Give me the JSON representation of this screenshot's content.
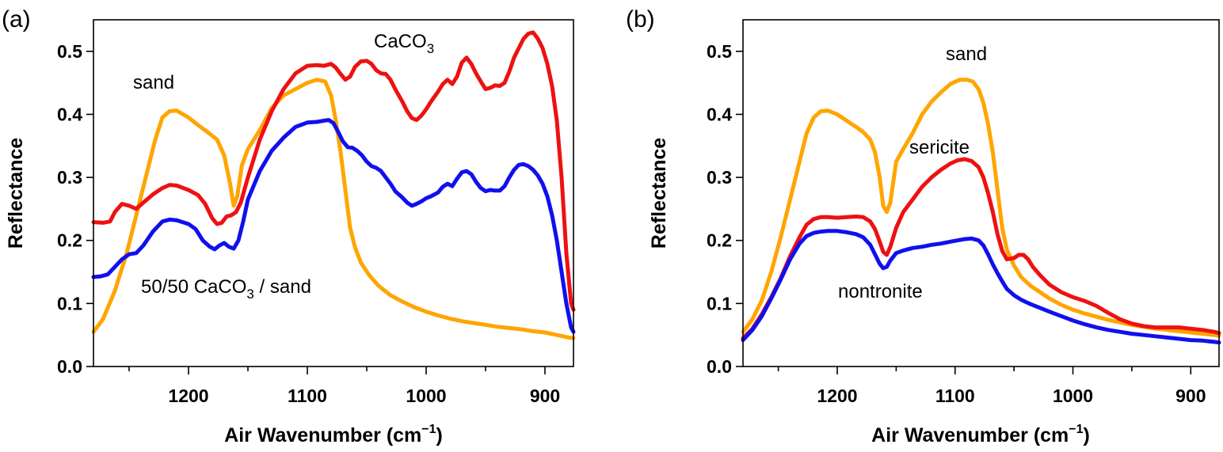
{
  "colors": {
    "sand": "#FFA500",
    "caco3": "#EE1111",
    "mix": "#1010EE",
    "sericite": "#EE1111",
    "nontronite": "#1010EE"
  },
  "chart_data": [
    {
      "id": "a",
      "type": "line",
      "panel_label": "(a)",
      "xlabel": "Air Wavenumber (cm",
      "xlabel_sup": "−1",
      "xlabel_close": ")",
      "ylabel": "Reflectance",
      "xlim": [
        1280,
        876
      ],
      "ylim": [
        0,
        0.55
      ],
      "xticks": [
        1200,
        1100,
        1000,
        900
      ],
      "yticks": [
        0.0,
        0.1,
        0.2,
        0.3,
        0.4,
        0.5
      ],
      "ytick_labels": [
        "0.0",
        "0.1",
        "0.2",
        "0.3",
        "0.4",
        "0.5"
      ],
      "annotations": {
        "sand": "sand",
        "caco3_main": "CaCO",
        "caco3_sub": "3",
        "mix_pre": "50/50 CaCO",
        "mix_sub": "3",
        "mix_post": " / sand"
      },
      "series": [
        {
          "name": "sand",
          "color": "#FFA500",
          "x": [
            1280,
            1272,
            1262,
            1252,
            1244,
            1236,
            1228,
            1222,
            1216,
            1210,
            1200,
            1192,
            1184,
            1176,
            1170,
            1165,
            1162,
            1159,
            1155,
            1150,
            1140,
            1130,
            1120,
            1110,
            1100,
            1092,
            1085,
            1080,
            1076,
            1072,
            1068,
            1064,
            1060,
            1055,
            1048,
            1040,
            1030,
            1020,
            1010,
            1000,
            990,
            980,
            970,
            960,
            950,
            940,
            930,
            920,
            910,
            900,
            890,
            880,
            876
          ],
          "y": [
            0.055,
            0.075,
            0.12,
            0.18,
            0.24,
            0.3,
            0.36,
            0.395,
            0.405,
            0.406,
            0.395,
            0.383,
            0.372,
            0.36,
            0.335,
            0.29,
            0.255,
            0.27,
            0.32,
            0.345,
            0.375,
            0.41,
            0.43,
            0.44,
            0.45,
            0.455,
            0.452,
            0.43,
            0.39,
            0.34,
            0.28,
            0.22,
            0.19,
            0.165,
            0.145,
            0.128,
            0.113,
            0.103,
            0.094,
            0.087,
            0.081,
            0.076,
            0.072,
            0.069,
            0.066,
            0.063,
            0.061,
            0.059,
            0.056,
            0.054,
            0.05,
            0.046,
            0.045
          ]
        },
        {
          "name": "CaCO3",
          "color": "#EE1111",
          "x": [
            1280,
            1272,
            1266,
            1262,
            1256,
            1250,
            1244,
            1238,
            1230,
            1222,
            1216,
            1210,
            1200,
            1192,
            1186,
            1180,
            1176,
            1172,
            1168,
            1164,
            1160,
            1156,
            1150,
            1140,
            1130,
            1120,
            1110,
            1100,
            1092,
            1086,
            1080,
            1076,
            1072,
            1068,
            1064,
            1060,
            1055,
            1050,
            1046,
            1042,
            1038,
            1034,
            1030,
            1026,
            1020,
            1016,
            1012,
            1008,
            1004,
            1000,
            996,
            990,
            986,
            982,
            978,
            974,
            970,
            966,
            962,
            958,
            954,
            950,
            946,
            942,
            938,
            934,
            930,
            926,
            922,
            918,
            914,
            910,
            906,
            902,
            898,
            894,
            890,
            886,
            882,
            878,
            876
          ],
          "y": [
            0.229,
            0.228,
            0.23,
            0.245,
            0.258,
            0.255,
            0.25,
            0.26,
            0.273,
            0.283,
            0.288,
            0.287,
            0.28,
            0.272,
            0.258,
            0.235,
            0.226,
            0.228,
            0.238,
            0.24,
            0.245,
            0.26,
            0.3,
            0.36,
            0.405,
            0.44,
            0.465,
            0.477,
            0.478,
            0.477,
            0.48,
            0.474,
            0.464,
            0.455,
            0.46,
            0.475,
            0.484,
            0.485,
            0.48,
            0.47,
            0.465,
            0.464,
            0.455,
            0.44,
            0.42,
            0.405,
            0.394,
            0.391,
            0.398,
            0.408,
            0.42,
            0.436,
            0.448,
            0.455,
            0.448,
            0.46,
            0.482,
            0.49,
            0.48,
            0.465,
            0.452,
            0.44,
            0.442,
            0.446,
            0.445,
            0.45,
            0.468,
            0.49,
            0.505,
            0.52,
            0.528,
            0.53,
            0.52,
            0.505,
            0.48,
            0.445,
            0.39,
            0.3,
            0.18,
            0.1,
            0.09
          ]
        },
        {
          "name": "50/50 CaCO3 / sand",
          "color": "#1010EE",
          "x": [
            1280,
            1274,
            1268,
            1262,
            1256,
            1250,
            1244,
            1238,
            1230,
            1222,
            1216,
            1210,
            1200,
            1194,
            1188,
            1182,
            1178,
            1174,
            1170,
            1166,
            1162,
            1158,
            1154,
            1150,
            1140,
            1130,
            1120,
            1110,
            1100,
            1092,
            1086,
            1082,
            1078,
            1074,
            1070,
            1066,
            1062,
            1058,
            1054,
            1050,
            1046,
            1042,
            1038,
            1034,
            1030,
            1026,
            1020,
            1016,
            1012,
            1008,
            1004,
            1000,
            996,
            990,
            986,
            982,
            978,
            974,
            970,
            966,
            962,
            958,
            954,
            950,
            946,
            942,
            938,
            934,
            930,
            926,
            922,
            918,
            914,
            910,
            906,
            902,
            898,
            894,
            890,
            886,
            882,
            878,
            876
          ],
          "y": [
            0.142,
            0.143,
            0.146,
            0.158,
            0.17,
            0.178,
            0.18,
            0.192,
            0.214,
            0.23,
            0.233,
            0.232,
            0.226,
            0.218,
            0.2,
            0.19,
            0.186,
            0.192,
            0.196,
            0.19,
            0.187,
            0.2,
            0.23,
            0.265,
            0.31,
            0.342,
            0.363,
            0.38,
            0.387,
            0.388,
            0.39,
            0.391,
            0.386,
            0.372,
            0.357,
            0.348,
            0.347,
            0.342,
            0.335,
            0.325,
            0.318,
            0.315,
            0.31,
            0.3,
            0.29,
            0.278,
            0.268,
            0.26,
            0.255,
            0.258,
            0.262,
            0.267,
            0.27,
            0.276,
            0.285,
            0.29,
            0.286,
            0.298,
            0.308,
            0.31,
            0.305,
            0.293,
            0.283,
            0.278,
            0.28,
            0.279,
            0.279,
            0.286,
            0.3,
            0.312,
            0.32,
            0.321,
            0.318,
            0.312,
            0.303,
            0.29,
            0.27,
            0.24,
            0.2,
            0.15,
            0.1,
            0.062,
            0.055
          ]
        }
      ]
    },
    {
      "id": "b",
      "type": "line",
      "panel_label": "(b)",
      "xlabel": "Air Wavenumber (cm",
      "xlabel_sup": "−1",
      "xlabel_close": ")",
      "ylabel": "Reflectance",
      "xlim": [
        1280,
        876
      ],
      "ylim": [
        0,
        0.55
      ],
      "xticks": [
        1200,
        1100,
        1000,
        900
      ],
      "yticks": [
        0.0,
        0.1,
        0.2,
        0.3,
        0.4,
        0.5
      ],
      "ytick_labels": [
        "0.0",
        "0.1",
        "0.2",
        "0.3",
        "0.4",
        "0.5"
      ],
      "annotations": {
        "sand": "sand",
        "sericite": "sericite",
        "nontronite": "nontronite"
      },
      "series": [
        {
          "name": "sand",
          "color": "#FFA500",
          "x": [
            1280,
            1272,
            1264,
            1256,
            1248,
            1240,
            1232,
            1226,
            1220,
            1214,
            1208,
            1200,
            1192,
            1184,
            1178,
            1172,
            1168,
            1164,
            1161,
            1158,
            1155,
            1150,
            1144,
            1136,
            1128,
            1120,
            1112,
            1104,
            1096,
            1090,
            1085,
            1080,
            1076,
            1072,
            1068,
            1064,
            1060,
            1056,
            1050,
            1044,
            1036,
            1028,
            1020,
            1010,
            1000,
            990,
            980,
            970,
            960,
            950,
            940,
            930,
            920,
            910,
            900,
            890,
            880,
            876
          ],
          "y": [
            0.055,
            0.075,
            0.105,
            0.15,
            0.205,
            0.265,
            0.325,
            0.37,
            0.395,
            0.405,
            0.406,
            0.4,
            0.39,
            0.38,
            0.372,
            0.36,
            0.34,
            0.3,
            0.255,
            0.245,
            0.26,
            0.325,
            0.345,
            0.37,
            0.4,
            0.42,
            0.435,
            0.448,
            0.455,
            0.455,
            0.452,
            0.44,
            0.418,
            0.385,
            0.34,
            0.28,
            0.22,
            0.185,
            0.16,
            0.142,
            0.128,
            0.118,
            0.108,
            0.098,
            0.09,
            0.084,
            0.079,
            0.074,
            0.07,
            0.066,
            0.063,
            0.06,
            0.058,
            0.056,
            0.054,
            0.052,
            0.05,
            0.049
          ]
        },
        {
          "name": "sericite",
          "color": "#EE1111",
          "x": [
            1280,
            1272,
            1264,
            1256,
            1248,
            1240,
            1232,
            1226,
            1220,
            1214,
            1208,
            1200,
            1192,
            1184,
            1178,
            1172,
            1168,
            1164,
            1161,
            1158,
            1155,
            1150,
            1144,
            1136,
            1128,
            1120,
            1112,
            1104,
            1098,
            1092,
            1086,
            1080,
            1076,
            1072,
            1068,
            1064,
            1060,
            1056,
            1050,
            1046,
            1042,
            1038,
            1034,
            1028,
            1020,
            1010,
            1000,
            990,
            980,
            970,
            960,
            950,
            940,
            930,
            920,
            910,
            900,
            890,
            880,
            876
          ],
          "y": [
            0.045,
            0.06,
            0.083,
            0.11,
            0.14,
            0.175,
            0.205,
            0.225,
            0.234,
            0.237,
            0.237,
            0.236,
            0.237,
            0.238,
            0.237,
            0.23,
            0.218,
            0.198,
            0.182,
            0.177,
            0.19,
            0.22,
            0.245,
            0.265,
            0.285,
            0.3,
            0.312,
            0.322,
            0.327,
            0.329,
            0.326,
            0.316,
            0.3,
            0.275,
            0.245,
            0.21,
            0.183,
            0.17,
            0.172,
            0.177,
            0.177,
            0.17,
            0.158,
            0.145,
            0.13,
            0.118,
            0.11,
            0.104,
            0.096,
            0.085,
            0.075,
            0.068,
            0.064,
            0.062,
            0.062,
            0.062,
            0.06,
            0.058,
            0.055,
            0.053
          ]
        },
        {
          "name": "nontronite",
          "color": "#1010EE",
          "x": [
            1280,
            1272,
            1264,
            1256,
            1248,
            1240,
            1232,
            1226,
            1220,
            1214,
            1208,
            1200,
            1192,
            1184,
            1178,
            1172,
            1168,
            1164,
            1161,
            1158,
            1155,
            1150,
            1144,
            1136,
            1128,
            1120,
            1112,
            1104,
            1098,
            1092,
            1086,
            1080,
            1076,
            1072,
            1068,
            1064,
            1060,
            1056,
            1050,
            1044,
            1036,
            1028,
            1020,
            1010,
            1000,
            990,
            980,
            970,
            960,
            950,
            940,
            930,
            920,
            910,
            900,
            890,
            880,
            876
          ],
          "y": [
            0.042,
            0.058,
            0.08,
            0.108,
            0.138,
            0.17,
            0.195,
            0.207,
            0.212,
            0.214,
            0.215,
            0.215,
            0.213,
            0.21,
            0.205,
            0.193,
            0.178,
            0.163,
            0.156,
            0.158,
            0.168,
            0.18,
            0.184,
            0.188,
            0.19,
            0.193,
            0.195,
            0.198,
            0.2,
            0.202,
            0.203,
            0.2,
            0.192,
            0.178,
            0.162,
            0.148,
            0.135,
            0.123,
            0.113,
            0.106,
            0.099,
            0.093,
            0.087,
            0.08,
            0.073,
            0.067,
            0.062,
            0.058,
            0.055,
            0.052,
            0.05,
            0.048,
            0.046,
            0.044,
            0.042,
            0.041,
            0.039,
            0.038
          ]
        }
      ]
    }
  ]
}
